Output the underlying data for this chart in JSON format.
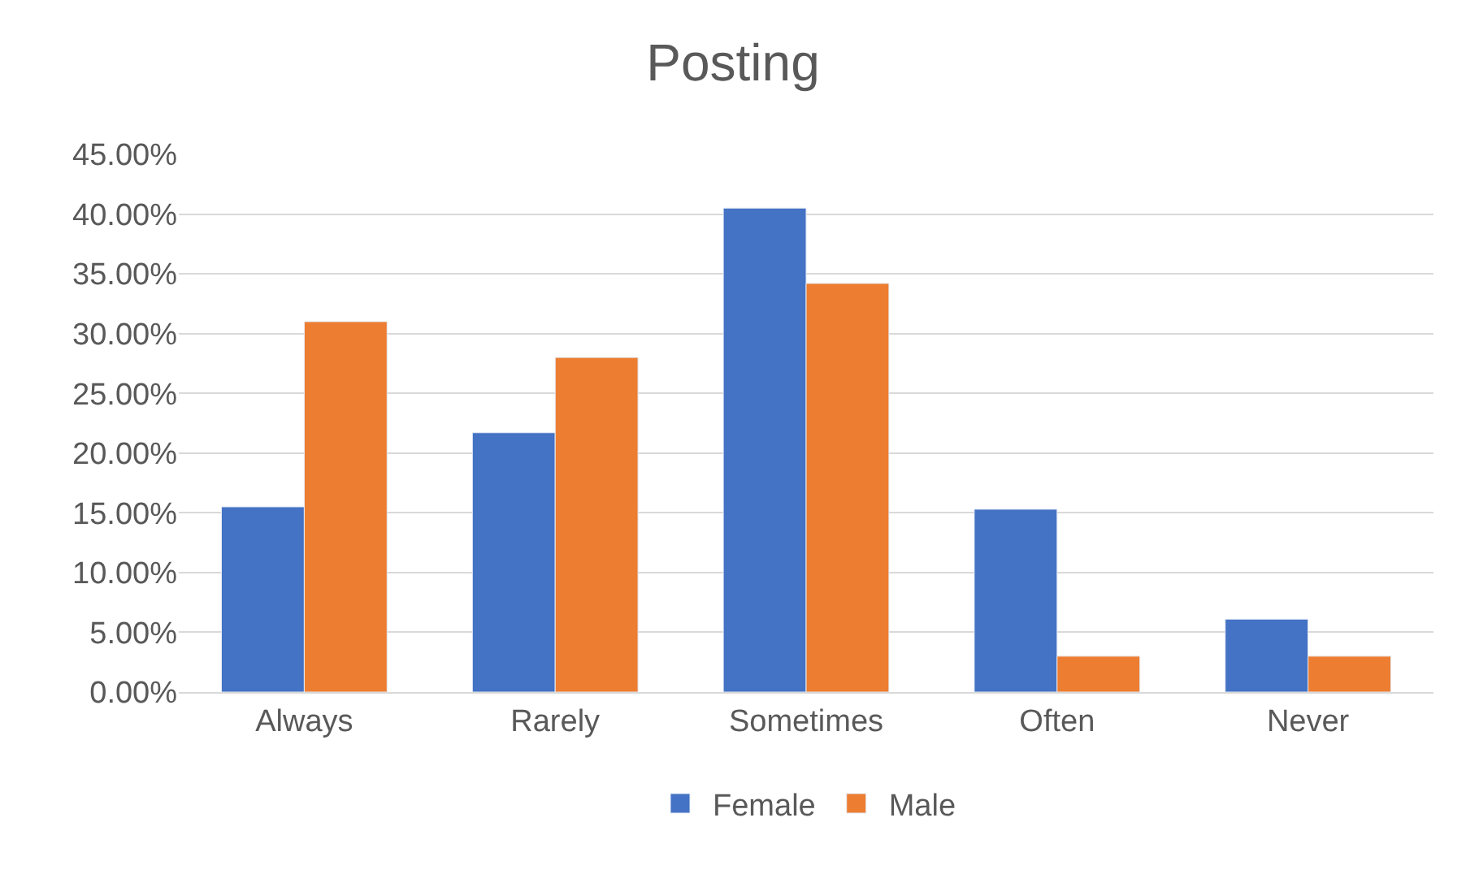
{
  "chart_data": {
    "type": "bar",
    "title": "Posting",
    "categories": [
      "Always",
      "Rarely",
      "Sometimes",
      "Often",
      "Never"
    ],
    "series": [
      {
        "name": "Female",
        "color": "#4472c4",
        "values": [
          15.5,
          21.7,
          40.5,
          15.3,
          6.1
        ]
      },
      {
        "name": "Male",
        "color": "#ed7d31",
        "values": [
          31.0,
          28.0,
          34.2,
          3.0,
          3.0
        ]
      }
    ],
    "ylim": [
      0,
      45
    ],
    "yticks": [
      {
        "value": 0,
        "label": "0.00%"
      },
      {
        "value": 5,
        "label": "5.00%"
      },
      {
        "value": 10,
        "label": "10.00%"
      },
      {
        "value": 15,
        "label": "15.00%"
      },
      {
        "value": 20,
        "label": "20.00%"
      },
      {
        "value": 25,
        "label": "25.00%"
      },
      {
        "value": 30,
        "label": "30.00%"
      },
      {
        "value": 35,
        "label": "35.00%"
      },
      {
        "value": 40,
        "label": "40.00%"
      },
      {
        "value": 45,
        "label": "45.00%"
      }
    ],
    "grid": "y",
    "legend": "bottom"
  }
}
